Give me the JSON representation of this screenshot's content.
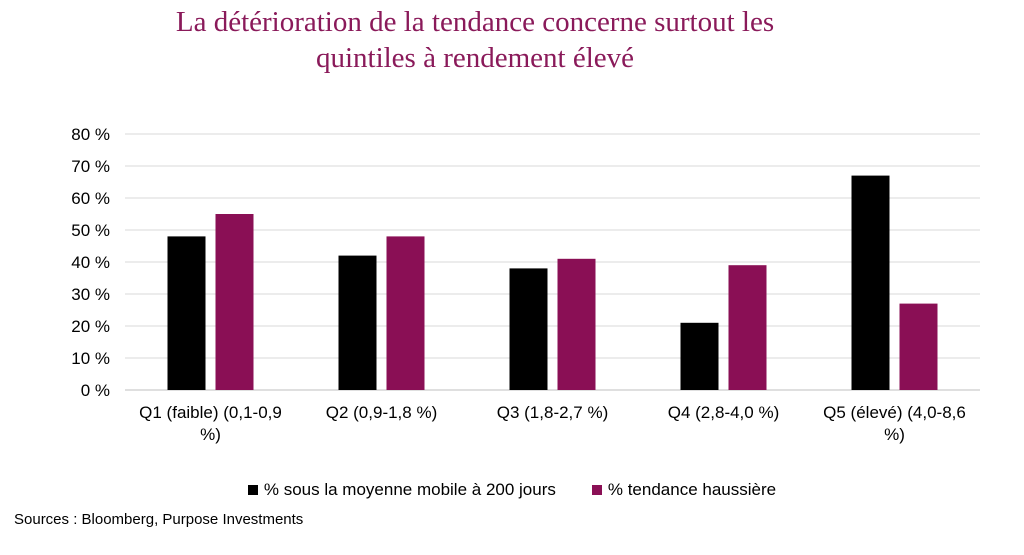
{
  "title": {
    "line1": "La détérioration de la tendance concerne surtout les",
    "line2": "quintiles à rendement élevé"
  },
  "source": "Sources : Bloomberg, Purpose Investments",
  "colors": {
    "series1": "#000000",
    "series2": "#8a0f55",
    "title": "#8a1a5a",
    "grid": "#d9d9d9",
    "axis": "#bfbfbf"
  },
  "chart_data": {
    "type": "bar",
    "title": "La détérioration de la tendance concerne surtout les quintiles à rendement élevé",
    "xlabel": "",
    "ylabel": "",
    "ylim": [
      0,
      80
    ],
    "y_ticks": [
      0,
      10,
      20,
      30,
      40,
      50,
      60,
      70,
      80
    ],
    "y_tick_labels": [
      "0 %",
      "10 %",
      "20 %",
      "30 %",
      "40 %",
      "50 %",
      "60 %",
      "70 %",
      "80 %"
    ],
    "grid": true,
    "legend_position": "bottom",
    "categories": [
      "Q1 (faible) (0,1-0,9 %)",
      "Q2 (0,9-1,8 %)",
      "Q3 (1,8-2,7 %)",
      "Q4 (2,8-4,0 %)",
      "Q5 (élevé) (4,0-8,6 %)"
    ],
    "category_label_lines": [
      [
        "Q1 (faible) (0,1-0,9",
        "%)"
      ],
      [
        "Q2 (0,9-1,8 %)"
      ],
      [
        "Q3 (1,8-2,7 %)"
      ],
      [
        "Q4 (2,8-4,0 %)"
      ],
      [
        "Q5 (élevé) (4,0-8,6",
        "%)"
      ]
    ],
    "series": [
      {
        "name": "% sous la moyenne mobile à 200 jours",
        "values": [
          48,
          42,
          38,
          21,
          67
        ]
      },
      {
        "name": "% tendance haussière",
        "values": [
          55,
          48,
          41,
          39,
          27
        ]
      }
    ]
  }
}
